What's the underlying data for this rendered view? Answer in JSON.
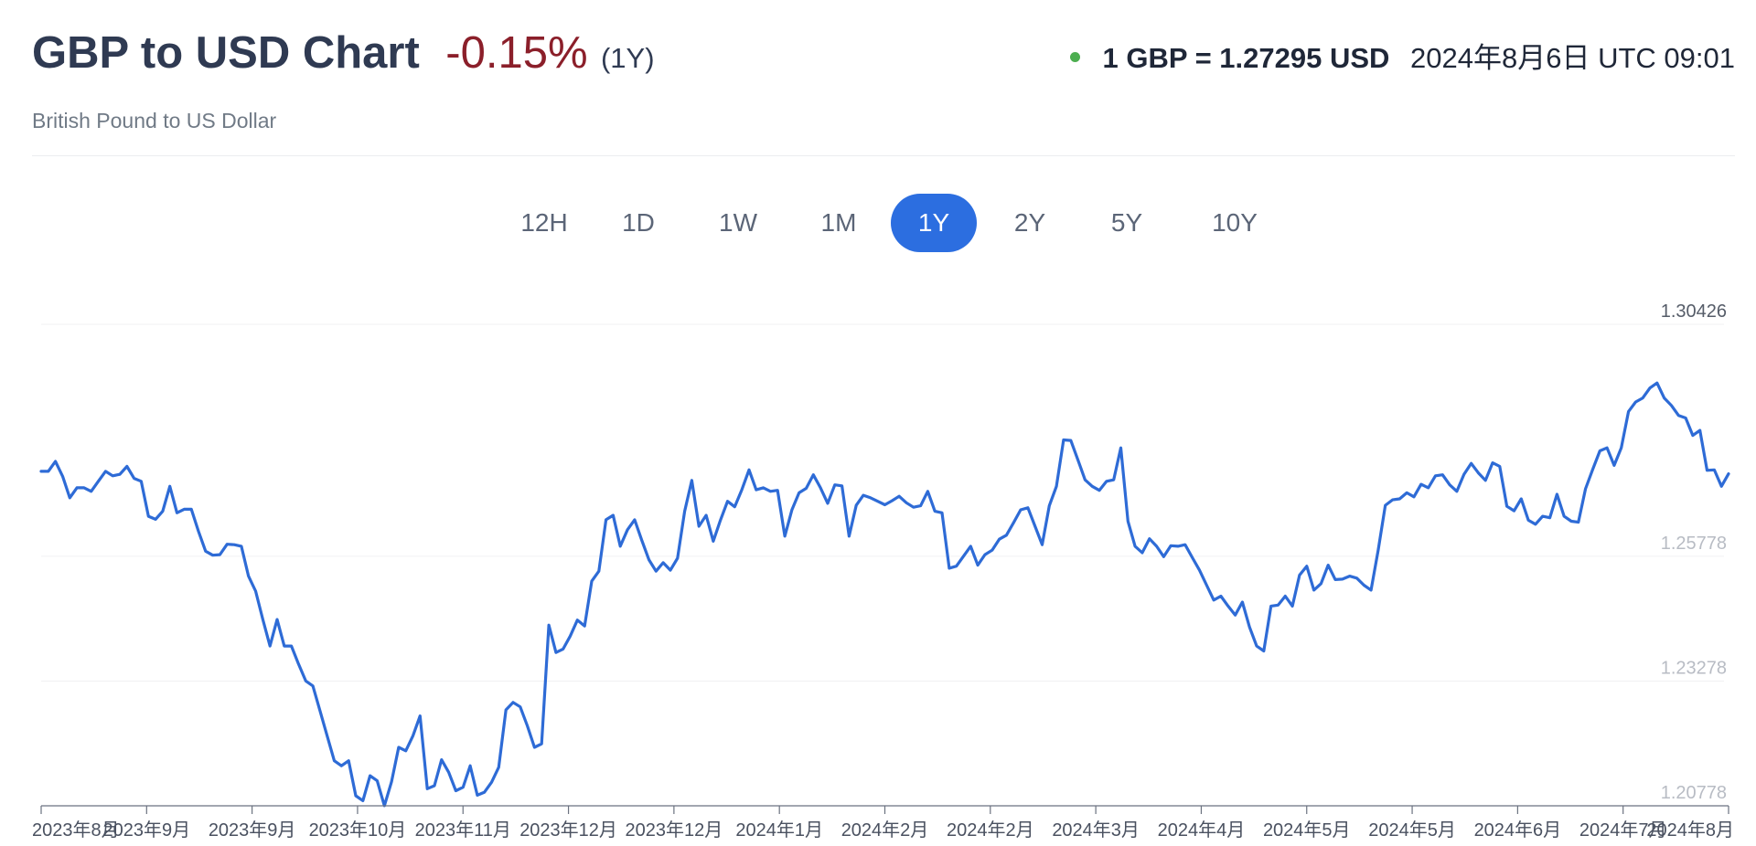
{
  "header": {
    "title": "GBP to USD Chart",
    "change": "-0.15%",
    "period": "(1Y)",
    "subtitle": "British Pound to US Dollar",
    "rate": "1 GBP = 1.27295 USD",
    "timestamp": "2024年8月6日 UTC 09:01"
  },
  "ranges": [
    "12H",
    "1D",
    "1W",
    "1M",
    "1Y",
    "2Y",
    "5Y",
    "10Y"
  ],
  "active_range": "1Y",
  "colors": {
    "line": "#2e6bd6",
    "accent": "#2c6ee0",
    "negative": "#8b1f2a",
    "status": "#4cae50",
    "title": "#2f3a52"
  },
  "chart_data": {
    "type": "line",
    "title": "GBP to USD Chart",
    "subtitle": "British Pound to US Dollar",
    "xlabel": "",
    "ylabel": "",
    "ylim": [
      1.20778,
      1.30426
    ],
    "yticks": [
      1.30426,
      1.25778,
      1.23278,
      1.20778
    ],
    "ytick_labels": [
      "1.30426",
      "1.25778",
      "1.23278",
      "1.20778"
    ],
    "xtick_labels": [
      "2023年8月",
      "2023年9月",
      "2023年9月",
      "2023年10月",
      "2023年11月",
      "2023年12月",
      "2023年12月",
      "2024年1月",
      "2024年2月",
      "2024年2月",
      "2024年3月",
      "2024年4月",
      "2024年5月",
      "2024年5月",
      "2024年6月",
      "2024年7月",
      "2024年8月"
    ],
    "grid": true,
    "legend": "none",
    "series": [
      {
        "values": [
          1.2748,
          1.2748,
          1.2768,
          1.2738,
          1.2695,
          1.2715,
          1.2715,
          1.2708,
          1.2728,
          1.2748,
          1.2739,
          1.2742,
          1.2758,
          1.2734,
          1.2728,
          1.2658,
          1.2652,
          1.2668,
          1.2718,
          1.2665,
          1.2672,
          1.2672,
          1.2628,
          1.2588,
          1.258,
          1.2581,
          1.2602,
          1.2601,
          1.2598,
          1.2538,
          1.2508,
          1.2451,
          1.2398,
          1.2451,
          1.2398,
          1.2398,
          1.2362,
          1.2328,
          1.2318,
          1.2268,
          1.2218,
          1.2168,
          1.2158,
          1.2168,
          1.2098,
          1.2088,
          1.2138,
          1.2128,
          1.2078,
          1.2126,
          1.2195,
          1.2188,
          1.2218,
          1.2258,
          1.2112,
          1.2118,
          1.217,
          1.2145,
          1.2108,
          1.2115,
          1.2158,
          1.2099,
          1.2105,
          1.2125,
          1.2155,
          1.227,
          1.2285,
          1.2276,
          1.2238,
          1.2195,
          1.2202,
          1.244,
          1.2385,
          1.2392,
          1.2418,
          1.245,
          1.2438,
          1.2528,
          1.2548,
          1.2651,
          1.266,
          1.2598,
          1.2631,
          1.2651,
          1.261,
          1.2571,
          1.2548,
          1.2565,
          1.255,
          1.2574,
          1.2668,
          1.273,
          1.2638,
          1.266,
          1.2608,
          1.265,
          1.2688,
          1.2677,
          1.2711,
          1.2751,
          1.2711,
          1.2715,
          1.2708,
          1.271,
          1.2618,
          1.2671,
          1.2705,
          1.2714,
          1.2741,
          1.2715,
          1.2684,
          1.2721,
          1.2719,
          1.2618,
          1.268,
          1.27,
          1.2695,
          1.2688,
          1.2681,
          1.2689,
          1.2698,
          1.2685,
          1.2676,
          1.2679,
          1.2708,
          1.2668,
          1.2665,
          1.2554,
          1.2558,
          1.2578,
          1.2598,
          1.256,
          1.2581,
          1.259,
          1.2612,
          1.262,
          1.2645,
          1.2671,
          1.2675,
          1.2638,
          1.2601,
          1.2679,
          1.2718,
          1.2811,
          1.281,
          1.2771,
          1.2731,
          1.2718,
          1.271,
          1.2728,
          1.2731,
          1.2795,
          1.2648,
          1.2598,
          1.2585,
          1.2613,
          1.2598,
          1.2577,
          1.2599,
          1.2598,
          1.2601,
          1.2575,
          1.255,
          1.252,
          1.249,
          1.2498,
          1.2478,
          1.246,
          1.2486,
          1.2436,
          1.2398,
          1.2388,
          1.2478,
          1.248,
          1.2498,
          1.2478,
          1.254,
          1.2558,
          1.251,
          1.2523,
          1.256,
          1.2531,
          1.2532,
          1.2538,
          1.2534,
          1.252,
          1.251,
          1.259,
          1.268,
          1.2691,
          1.2693,
          1.2705,
          1.2697,
          1.2722,
          1.2715,
          1.2739,
          1.2741,
          1.2721,
          1.2708,
          1.2742,
          1.2764,
          1.2745,
          1.273,
          1.2765,
          1.2758,
          1.2678,
          1.2669,
          1.2693,
          1.265,
          1.2642,
          1.2658,
          1.2655,
          1.2702,
          1.2658,
          1.2648,
          1.2646,
          1.2713,
          1.2752,
          1.2789,
          1.2795,
          1.276,
          1.2795,
          1.2868,
          1.2887,
          1.2895,
          1.2915,
          1.2925,
          1.2895,
          1.288,
          1.286,
          1.2855,
          1.282,
          1.283,
          1.275,
          1.2751,
          1.2718,
          1.2743
        ]
      }
    ]
  }
}
